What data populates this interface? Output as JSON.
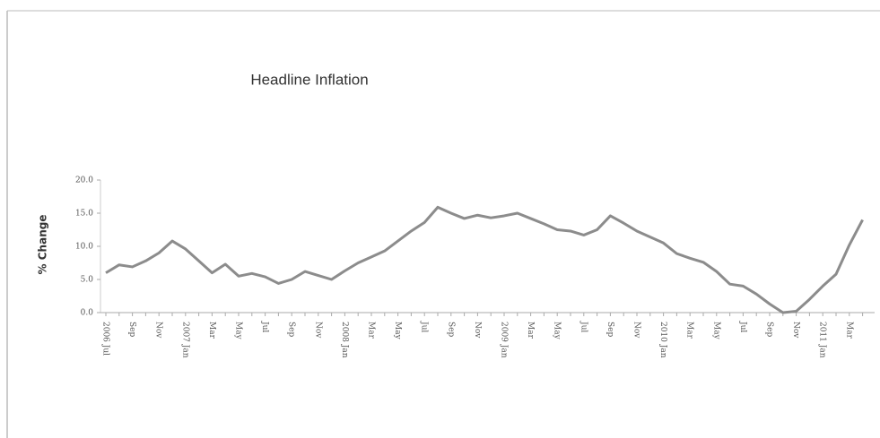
{
  "chart_data": {
    "type": "line",
    "title": "Headline Inflation",
    "y_label": "% Change",
    "categories": [
      "2006 Jul",
      null,
      "Sep",
      null,
      "Nov",
      null,
      "2007 Jan",
      null,
      "Mar",
      null,
      "May",
      null,
      "Jul",
      null,
      "Sep",
      null,
      "Nov",
      null,
      "2008 Jan",
      null,
      "Mar",
      null,
      "May",
      null,
      "Jul",
      null,
      "Sep",
      null,
      "Nov",
      null,
      "2009 Jan",
      null,
      "Mar",
      null,
      "May",
      null,
      "Jul",
      null,
      "Sep",
      null,
      "Nov",
      null,
      "2010 Jan",
      null,
      "Mar",
      null,
      "May",
      null,
      "Jul",
      null,
      "Sep",
      null,
      "Nov",
      null,
      "2011 Jan",
      null,
      "Mar",
      null
    ],
    "series": [
      {
        "name": "Headline Inflation",
        "color": "#8c8c8c",
        "values": [
          6.0,
          7.2,
          6.9,
          7.8,
          9.0,
          10.8,
          9.6,
          7.8,
          6.0,
          7.3,
          5.5,
          5.9,
          5.4,
          4.4,
          5.0,
          6.2,
          5.6,
          5.0,
          6.3,
          7.5,
          8.4,
          9.3,
          10.8,
          12.3,
          13.6,
          15.9,
          15.0,
          14.2,
          14.7,
          14.3,
          14.6,
          15.0,
          14.2,
          13.4,
          12.5,
          12.3,
          11.7,
          12.5,
          14.6,
          13.5,
          12.3,
          11.4,
          10.5,
          8.9,
          8.2,
          7.6,
          6.2,
          4.3,
          4.0,
          2.8,
          1.3,
          0.0,
          0.2,
          2.0,
          4.0,
          5.8,
          10.2,
          14.0
        ]
      }
    ],
    "ylim": [
      0,
      20
    ],
    "yticks": [
      {
        "value": 0,
        "label": "0.0"
      },
      {
        "value": 5,
        "label": "5.0"
      },
      {
        "value": 10,
        "label": "10.0"
      },
      {
        "value": 15,
        "label": "15.0"
      },
      {
        "value": 20,
        "label": "20.0"
      }
    ],
    "grid": false
  }
}
